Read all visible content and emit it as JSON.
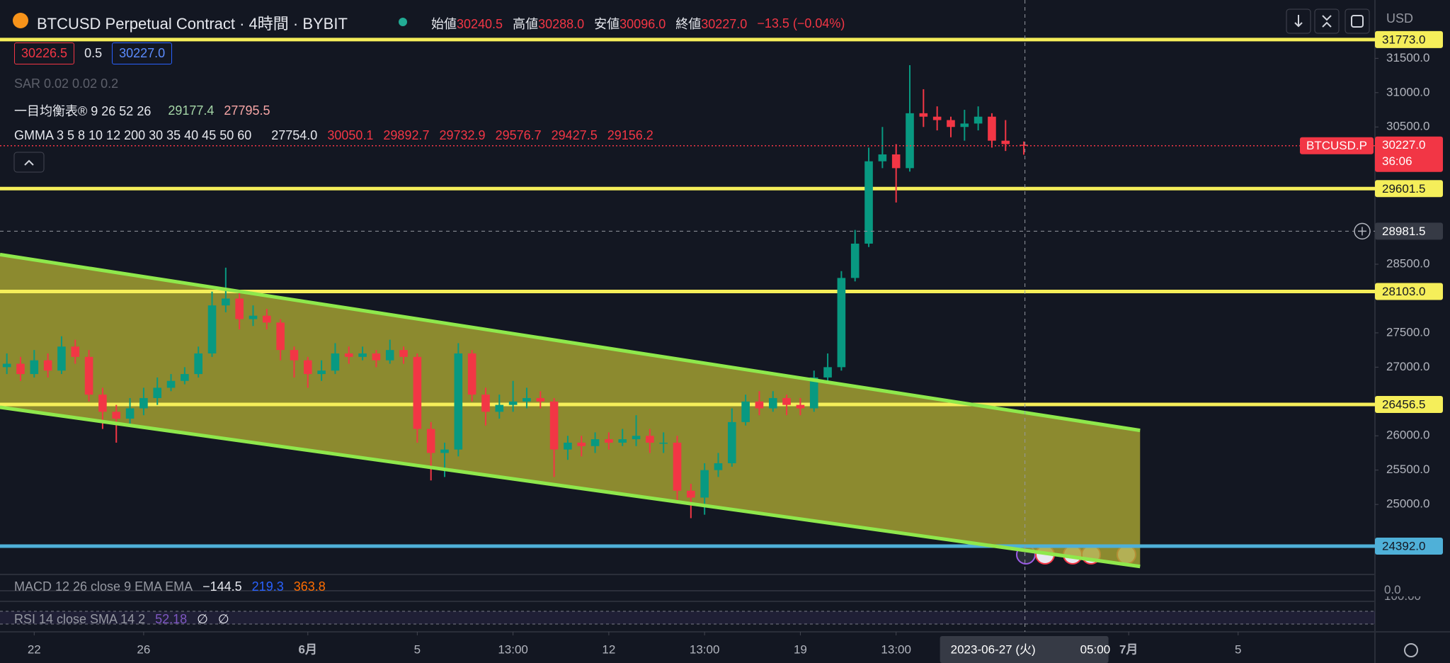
{
  "header": {
    "title": "BTCUSD Perpetual Contract · 4時間 · BYBIT",
    "ohlc": [
      {
        "label": "始値",
        "value": "30240.5"
      },
      {
        "label": "高値",
        "value": "30288.0"
      },
      {
        "label": "安値",
        "value": "30096.0"
      },
      {
        "label": "終値",
        "value": "30227.0"
      }
    ],
    "change": "−13.5 (−0.04%)",
    "currency": "USD"
  },
  "quote": {
    "bid": "30226.5",
    "spread": "0.5",
    "ask": "30227.0"
  },
  "indicators": {
    "sar": "SAR 0.02 0.02 0.2",
    "ichimoku": {
      "name": "一目均衡表® 9 26 52 26",
      "values": [
        "29177.4",
        "27795.5"
      ]
    },
    "gmma": {
      "name": "GMMA 3 5 8 10 12 200 30 35 40 45 50 60",
      "values": [
        "27754.0",
        "30050.1",
        "29892.7",
        "29732.9",
        "29576.7",
        "29427.5",
        "29156.2"
      ]
    },
    "macd": {
      "name": "MACD 12 26 close 9 EMA EMA",
      "values": [
        "−144.5",
        "219.3",
        "363.8"
      ],
      "axis": "0.0"
    },
    "rsi": {
      "name": "RSI 14 close SMA 14 2",
      "values": [
        "52.18",
        "∅",
        "∅"
      ],
      "axis": "100.00"
    }
  },
  "chart_data": {
    "type": "candlestick",
    "x": [
      "2023-05-21 00:00",
      "2023-05-21 12:00",
      "2023-05-22 00:00",
      "2023-05-22 12:00",
      "2023-05-23 00:00",
      "2023-05-23 12:00",
      "2023-05-24 00:00",
      "2023-05-24 12:00",
      "2023-05-25 00:00",
      "2023-05-25 12:00",
      "2023-05-26 00:00",
      "2023-05-26 12:00",
      "2023-05-27 00:00",
      "2023-05-27 12:00",
      "2023-05-28 00:00",
      "2023-05-28 12:00",
      "2023-05-29 00:00",
      "2023-05-29 12:00",
      "2023-05-30 00:00",
      "2023-05-30 12:00",
      "2023-05-31 00:00",
      "2023-05-31 12:00",
      "2023-06-01 00:00",
      "2023-06-01 12:00",
      "2023-06-02 00:00",
      "2023-06-02 12:00",
      "2023-06-03 00:00",
      "2023-06-03 12:00",
      "2023-06-04 00:00",
      "2023-06-04 12:00",
      "2023-06-05 00:00",
      "2023-06-05 12:00",
      "2023-06-06 00:00",
      "2023-06-06 12:00",
      "2023-06-07 00:00",
      "2023-06-07 12:00",
      "2023-06-08 00:00",
      "2023-06-08 12:00",
      "2023-06-09 00:00",
      "2023-06-09 12:00",
      "2023-06-10 00:00",
      "2023-06-10 12:00",
      "2023-06-11 00:00",
      "2023-06-11 12:00",
      "2023-06-12 00:00",
      "2023-06-12 12:00",
      "2023-06-13 00:00",
      "2023-06-13 12:00",
      "2023-06-14 00:00",
      "2023-06-14 12:00",
      "2023-06-15 00:00",
      "2023-06-15 12:00",
      "2023-06-16 00:00",
      "2023-06-16 12:00",
      "2023-06-17 00:00",
      "2023-06-17 12:00",
      "2023-06-18 00:00",
      "2023-06-18 12:00",
      "2023-06-19 00:00",
      "2023-06-19 12:00",
      "2023-06-20 00:00",
      "2023-06-20 12:00",
      "2023-06-21 00:00",
      "2023-06-21 12:00",
      "2023-06-22 00:00",
      "2023-06-22 12:00",
      "2023-06-23 00:00",
      "2023-06-23 12:00",
      "2023-06-24 00:00",
      "2023-06-24 12:00",
      "2023-06-25 00:00",
      "2023-06-25 12:00",
      "2023-06-26 00:00",
      "2023-06-26 12:00",
      "2023-06-27 04:00"
    ],
    "open": [
      27000,
      27050,
      26900,
      27100,
      26950,
      27300,
      27150,
      26600,
      26350,
      26250,
      26400,
      26550,
      26700,
      26800,
      26900,
      27200,
      27900,
      28000,
      27700,
      27750,
      27650,
      27250,
      27100,
      26900,
      26950,
      27200,
      27150,
      27200,
      27100,
      27250,
      27150,
      26100,
      25750,
      25800,
      27200,
      26600,
      26350,
      26450,
      26500,
      26550,
      26500,
      25800,
      25900,
      25850,
      25950,
      25900,
      25950,
      26000,
      25900,
      25900,
      25200,
      25100,
      25500,
      25600,
      26200,
      26500,
      26400,
      26550,
      26450,
      26400,
      26850,
      27000,
      28300,
      28800,
      30000,
      30100,
      29900,
      30700,
      30650,
      30600,
      30500,
      30550,
      30650,
      30300,
      30240.5
    ],
    "high": [
      27200,
      27150,
      27250,
      27200,
      27450,
      27400,
      27250,
      26700,
      26450,
      26550,
      26700,
      26850,
      26900,
      27000,
      27300,
      28100,
      28450,
      28100,
      27900,
      27850,
      27700,
      27300,
      27150,
      27100,
      27350,
      27300,
      27300,
      27250,
      27400,
      27300,
      27200,
      26200,
      25900,
      27350,
      27250,
      26700,
      26600,
      26800,
      26700,
      26650,
      26550,
      26000,
      26000,
      26050,
      26050,
      26100,
      26300,
      26100,
      26050,
      26000,
      25300,
      25600,
      25750,
      26400,
      26600,
      26650,
      26650,
      26600,
      26550,
      26950,
      27200,
      28400,
      29000,
      30200,
      30500,
      30250,
      31400,
      31050,
      30800,
      30650,
      30750,
      30800,
      30700,
      30600,
      30288
    ],
    "low": [
      26900,
      26800,
      26850,
      26850,
      26900,
      27050,
      26500,
      26100,
      25900,
      26150,
      26300,
      26450,
      26650,
      26750,
      26850,
      27150,
      27800,
      27550,
      27600,
      27550,
      27100,
      26850,
      26700,
      26800,
      26900,
      27050,
      27100,
      27000,
      27050,
      27050,
      25900,
      25350,
      25400,
      25700,
      26500,
      26150,
      26250,
      26350,
      26400,
      26400,
      25400,
      25650,
      25700,
      25750,
      25800,
      25850,
      25850,
      25750,
      25750,
      25050,
      24800,
      24850,
      25400,
      25550,
      26150,
      26300,
      26350,
      26300,
      26300,
      26350,
      26800,
      26950,
      28250,
      28750,
      29900,
      29400,
      29850,
      30500,
      30450,
      30350,
      30300,
      30450,
      30200,
      30150,
      30096
    ],
    "close": [
      27050,
      26900,
      27100,
      26950,
      27300,
      27150,
      26600,
      26350,
      26250,
      26400,
      26550,
      26700,
      26800,
      26900,
      27200,
      27900,
      28000,
      27700,
      27750,
      27650,
      27250,
      27100,
      26900,
      26950,
      27200,
      27150,
      27200,
      27100,
      27250,
      27150,
      26100,
      25750,
      25800,
      27200,
      26600,
      26350,
      26450,
      26500,
      26550,
      26500,
      25800,
      25900,
      25850,
      25950,
      25900,
      25950,
      26000,
      25900,
      25900,
      25200,
      25100,
      25500,
      25600,
      26200,
      26500,
      26400,
      26550,
      26450,
      26400,
      26850,
      27000,
      28300,
      28800,
      30000,
      30100,
      29900,
      30700,
      30650,
      30600,
      30500,
      30550,
      30650,
      30300,
      30250,
      30227
    ],
    "up_color": "#089981",
    "down_color": "#f23645",
    "xlim": [
      "2023-05-20 18:00",
      "2023-07-10 00:00"
    ],
    "ylim": [
      23990,
      32350
    ],
    "yticks": [
      {
        "value": 25000,
        "label": "25000.0"
      },
      {
        "value": 25500,
        "label": "25500.0"
      },
      {
        "value": 26000,
        "label": "26000.0"
      },
      {
        "value": 27000,
        "label": "27000.0"
      },
      {
        "value": 27500,
        "label": "27500.0"
      },
      {
        "value": 28500,
        "label": "28500.0"
      },
      {
        "value": 30500,
        "label": "30500.0"
      },
      {
        "value": 31000,
        "label": "31000.0"
      },
      {
        "value": 31500,
        "label": "31500.0"
      }
    ],
    "xticks": [
      {
        "value": "2023-05-22",
        "label": "22"
      },
      {
        "value": "2023-05-26",
        "label": "26"
      },
      {
        "value": "2023-06-01",
        "label": "6月"
      },
      {
        "value": "2023-06-05",
        "label": "5"
      },
      {
        "value": "2023-06-08 12:00",
        "label": "13:00"
      },
      {
        "value": "2023-06-12",
        "label": "12"
      },
      {
        "value": "2023-06-15 12:00",
        "label": "13:00"
      },
      {
        "value": "2023-06-19",
        "label": "19"
      },
      {
        "value": "2023-06-22 12:00",
        "label": "13:00"
      },
      {
        "value": "2023-07-01",
        "label": "7月"
      },
      {
        "value": "2023-07-05",
        "label": "5"
      }
    ],
    "channel": {
      "color": "#8fe84c",
      "fill": "#a7a432",
      "upper": {
        "x": [
          "2023-05-20 18:00",
          "2023-07-01 10:00"
        ],
        "y": [
          28641,
          26079
        ]
      },
      "lower": {
        "x": [
          "2023-05-20 18:00",
          "2023-07-01 10:00"
        ],
        "y": [
          26416,
          24096
        ]
      }
    },
    "levels": [
      {
        "value": 31773,
        "label": "31773.0",
        "color": "#f5ee5a"
      },
      {
        "value": 29601.5,
        "color": "#f5ee5a"
      },
      {
        "value": 28103,
        "label": "28103.0",
        "color": "#f5ee5a"
      },
      {
        "value": 26456.5,
        "color": "#f5ee5a"
      },
      {
        "value": 24392,
        "label": "24392.0",
        "color": "#4fb0d8"
      }
    ],
    "last_price": {
      "value": 30227,
      "label": "30227.0",
      "symbol": "BTCUSD.P",
      "countdown": "36:06",
      "color": "#f23645"
    },
    "crosshair": {
      "x": "2023-06-27 05:00",
      "x_label": "2023-06-27 (火)",
      "x_time": "05:00",
      "y": 28981.5
    }
  }
}
